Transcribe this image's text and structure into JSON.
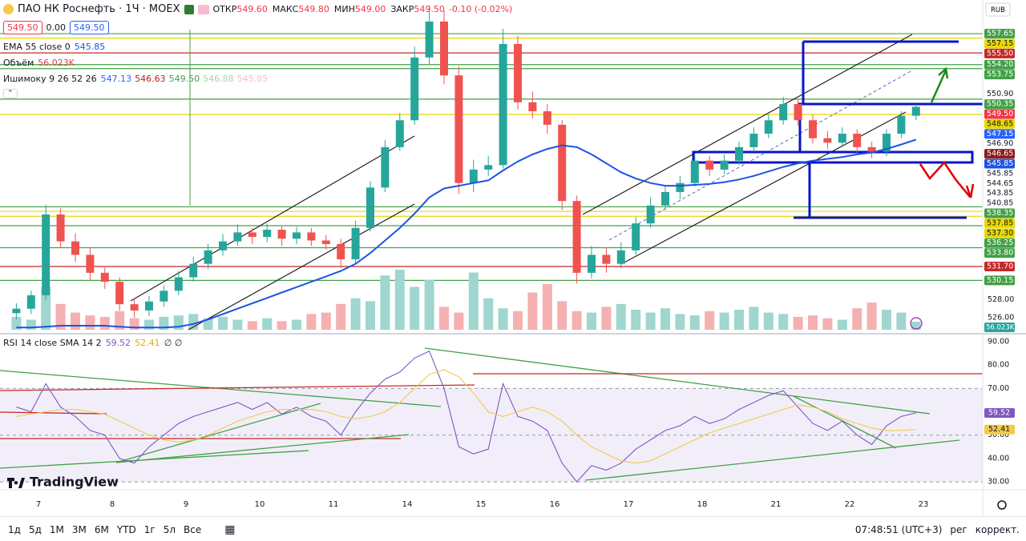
{
  "header": {
    "symbol": "ПАО НК Роснефть · 1Ч · MOEX",
    "ohlc": [
      [
        "ОТКР",
        "549.60"
      ],
      [
        "МАКС",
        "549.80"
      ],
      [
        "МИН",
        "549.00"
      ],
      [
        "ЗАКР",
        "549.50"
      ]
    ],
    "change": "-0.10 (-0.02%)",
    "price_boxes": [
      "549.50",
      "0.00",
      "549.50"
    ],
    "currency": "RUB",
    "ichimoku": {
      "name": "Ишимоку 9 26 52 26",
      "values": [
        "547.13",
        "546.63",
        "549.50",
        "546.88",
        "545.85"
      ],
      "colors": [
        "#2962ff",
        "#b71c1c",
        "#43a047",
        "#a5d6a7",
        "#f8bbd0"
      ]
    }
  },
  "branding": "TradingView",
  "toolbar": {
    "ranges": [
      "1д",
      "5д",
      "1М",
      "3М",
      "6М",
      "YTD",
      "1г",
      "5л",
      "Все"
    ],
    "time": "07:48:51 (UTC+3)",
    "session": "рег",
    "adjust": "коррект."
  },
  "chart_data": [
    {
      "type": "candlestick",
      "up_color": "#26a69a",
      "down_color": "#ef5350",
      "categories": [
        null,
        null,
        "7",
        null,
        null,
        null,
        null,
        "8",
        null,
        null,
        null,
        null,
        "9",
        null,
        null,
        null,
        null,
        "10",
        null,
        null,
        null,
        null,
        "11",
        null,
        null,
        null,
        null,
        "14",
        null,
        null,
        null,
        null,
        "15",
        null,
        null,
        null,
        null,
        "16",
        null,
        null,
        null,
        null,
        "17",
        null,
        null,
        null,
        null,
        "18",
        null,
        null,
        null,
        null,
        "21",
        null,
        null,
        null,
        null,
        "22",
        null,
        null,
        null,
        null,
        "23"
      ],
      "open": [
        526.5,
        527.0,
        528.5,
        537.5,
        534.5,
        533.0,
        531.0,
        530.0,
        527.5,
        526.8,
        527.8,
        529.0,
        530.5,
        532.0,
        533.5,
        534.5,
        535.5,
        535.0,
        535.8,
        534.8,
        535.5,
        534.6,
        534.2,
        532.5,
        536.0,
        540.5,
        545.0,
        548.0,
        555.0,
        559.0,
        553.0,
        541.0,
        542.5,
        543.0,
        556.5,
        550.0,
        549.0,
        547.5,
        539.0,
        531.0,
        533.0,
        532.0,
        533.5,
        536.5,
        538.5,
        540.0,
        541.0,
        543.5,
        542.5,
        543.5,
        545.0,
        546.5,
        548.0,
        549.8,
        548.0,
        546.0,
        545.5,
        546.5,
        545.0,
        544.5,
        546.5,
        548.5,
        null
      ],
      "high": [
        527.6,
        529.0,
        538.6,
        538.2,
        535.4,
        533.8,
        531.6,
        530.5,
        528.2,
        528.4,
        529.6,
        531.2,
        532.8,
        534.2,
        535.3,
        536.4,
        536.0,
        536.5,
        536.2,
        536.1,
        536.0,
        535.2,
        534.8,
        536.8,
        541.2,
        545.8,
        548.8,
        556.2,
        560.8,
        560.2,
        554.0,
        543.6,
        544.0,
        558.2,
        557.4,
        551.2,
        549.8,
        548.0,
        539.6,
        534.0,
        533.8,
        534.4,
        537.2,
        539.4,
        540.8,
        541.8,
        544.2,
        544.0,
        544.2,
        545.6,
        547.2,
        548.6,
        550.6,
        550.4,
        548.6,
        546.8,
        547.2,
        547.0,
        545.6,
        547.0,
        549.0,
        549.8,
        null
      ],
      "low": [
        525.8,
        526.4,
        528.0,
        533.8,
        532.2,
        530.2,
        529.2,
        526.8,
        526.0,
        526.2,
        527.2,
        528.5,
        530.0,
        531.4,
        532.9,
        534.0,
        534.2,
        534.4,
        534.0,
        534.2,
        534.0,
        533.6,
        531.5,
        532.0,
        535.6,
        540.0,
        544.6,
        547.5,
        554.2,
        552.0,
        539.8,
        540.0,
        541.8,
        542.6,
        549.2,
        548.2,
        546.5,
        538.0,
        529.8,
        530.4,
        531.0,
        531.5,
        533.0,
        536.0,
        538.0,
        539.2,
        540.6,
        541.8,
        542.0,
        543.0,
        544.5,
        546.0,
        547.5,
        547.4,
        545.4,
        544.8,
        545.0,
        544.4,
        543.8,
        544.0,
        546.0,
        548.0,
        null
      ],
      "close": [
        527.0,
        528.5,
        537.5,
        534.5,
        533.0,
        531.0,
        530.0,
        527.5,
        526.8,
        527.8,
        529.0,
        530.5,
        532.0,
        533.5,
        534.5,
        535.5,
        535.0,
        535.8,
        534.8,
        535.5,
        534.6,
        534.2,
        532.5,
        536.0,
        540.5,
        545.0,
        548.0,
        555.0,
        559.0,
        553.0,
        541.0,
        542.5,
        543.0,
        556.5,
        550.0,
        549.0,
        547.5,
        539.0,
        531.0,
        533.0,
        532.0,
        533.5,
        536.5,
        538.5,
        540.0,
        541.0,
        543.5,
        542.5,
        543.5,
        545.0,
        546.5,
        548.0,
        549.8,
        548.0,
        546.0,
        545.5,
        546.5,
        545.0,
        544.5,
        546.5,
        548.5,
        549.5,
        null
      ],
      "volume": {
        "name": "Объём",
        "up_color": "#9fd6cf",
        "down_color": "#f5b0b2",
        "last_label": "56.023K",
        "values": [
          90000,
          70000,
          300000,
          180000,
          120000,
          100000,
          90000,
          130000,
          80000,
          70000,
          90000,
          100000,
          110000,
          80000,
          90000,
          70000,
          60000,
          80000,
          60000,
          70000,
          110000,
          120000,
          180000,
          220000,
          200000,
          380000,
          420000,
          300000,
          350000,
          160000,
          120000,
          400000,
          220000,
          150000,
          130000,
          260000,
          320000,
          200000,
          130000,
          120000,
          160000,
          180000,
          140000,
          120000,
          150000,
          110000,
          100000,
          130000,
          120000,
          140000,
          160000,
          120000,
          110000,
          90000,
          100000,
          80000,
          70000,
          150000,
          190000,
          140000,
          120000,
          56023,
          null
        ]
      },
      "lines": [
        {
          "name": "EMA 55 close 0",
          "color": "#1e53e5",
          "values": [
            524.9,
            524.9,
            525.0,
            525.1,
            525.1,
            525.1,
            525.1,
            525.0,
            524.9,
            524.9,
            524.9,
            525.0,
            525.3,
            525.8,
            526.4,
            527.0,
            527.6,
            528.2,
            528.8,
            529.4,
            530.0,
            530.6,
            531.2,
            532.0,
            533.2,
            534.6,
            536.0,
            537.6,
            539.4,
            540.4,
            540.7,
            541.0,
            541.3,
            542.4,
            543.4,
            544.2,
            544.8,
            545.2,
            545.0,
            544.2,
            543.2,
            542.2,
            541.5,
            541.0,
            540.7,
            540.7,
            540.8,
            540.9,
            541.1,
            541.4,
            541.8,
            542.3,
            542.8,
            543.2,
            543.5,
            543.7,
            543.9,
            544.2,
            544.4,
            544.8,
            545.3,
            545.85,
            null
          ]
        }
      ],
      "ylim": [
        524.3,
        561.4
      ],
      "yticks": [
        {
          "value": 526,
          "label": "526.00"
        },
        {
          "value": 528,
          "label": "528.00"
        }
      ],
      "levels": [
        {
          "value": 557.65,
          "label": "557.65",
          "color": "#43a047",
          "line": true
        },
        {
          "value": 557.15,
          "label": "557.15",
          "color": "#e8d800",
          "line": true
        },
        {
          "value": 555.5,
          "label": "555.50",
          "color": "#c62828",
          "line": true
        },
        {
          "value": 554.2,
          "label": "554.20",
          "color": "#43a047",
          "line": true
        },
        {
          "value": 553.75,
          "label": "553.75",
          "color": "#43a047",
          "line": true
        },
        {
          "value": 550.9,
          "label": "550.90",
          "color": "#ffffff",
          "line": false
        },
        {
          "value": 550.35,
          "label": "550.35",
          "color": "#43a047",
          "line": true
        },
        {
          "value": 549.5,
          "label": "549.50",
          "color": "#f23645",
          "line": false
        },
        {
          "value": 548.65,
          "label": "548.65",
          "color": "#e8d800",
          "line": true
        },
        {
          "value": 547.15,
          "label": "547.15",
          "color": "#2962ff",
          "line": false
        },
        {
          "value": 546.9,
          "label": "546.90",
          "color": "#ffffff",
          "line": false
        },
        {
          "value": 546.65,
          "label": "546.65",
          "color": "#8e1b1b",
          "line": false
        },
        {
          "value": 545.85,
          "label": "545.85",
          "color": "#1e53e5",
          "line": false
        },
        {
          "value": 545.85,
          "label": "545.85",
          "color": "#ffffff",
          "line": false
        },
        {
          "value": 544.65,
          "label": "544.65",
          "color": "#ffffff",
          "line": false
        },
        {
          "value": 543.85,
          "label": "543.85",
          "color": "#ffffff",
          "line": false
        },
        {
          "value": 540.85,
          "label": "540.85",
          "color": "#ffffff",
          "line": false
        },
        {
          "value": 538.35,
          "label": "538.35",
          "color": "#43a047",
          "line": true
        },
        {
          "value": 537.85,
          "label": "537.85",
          "color": "#e8d800",
          "line": true
        },
        {
          "value": 537.3,
          "label": "537.30",
          "color": "#e8d800",
          "line": true
        },
        {
          "value": 536.25,
          "label": "536.25",
          "color": "#43a047",
          "line": true
        },
        {
          "value": 533.8,
          "label": "533.80",
          "color": "#43a047",
          "line": true
        },
        {
          "value": 531.7,
          "label": "531.70",
          "color": "#c62828",
          "line": true
        },
        {
          "value": 530.15,
          "label": "530.15",
          "color": "#43a047",
          "line": true
        }
      ]
    },
    {
      "type": "line",
      "title": "RSI 14 close SMA 14 2",
      "extra": "∅ ∅",
      "series": [
        {
          "name": "RSI",
          "color": "#7e57c2",
          "values": [
            62,
            60,
            72,
            62,
            58,
            52,
            50,
            40,
            38,
            45,
            50,
            55,
            58,
            60,
            62,
            64,
            61,
            64,
            59,
            62,
            58,
            56,
            50,
            60,
            68,
            74,
            77,
            83,
            86,
            70,
            45,
            42,
            44,
            72,
            58,
            56,
            52,
            38,
            30,
            37,
            35,
            38,
            44,
            48,
            52,
            54,
            58,
            55,
            57,
            61,
            64,
            67,
            69,
            62,
            55,
            52,
            56,
            50,
            46,
            54,
            58,
            59.52,
            null
          ]
        },
        {
          "name": "SMA",
          "color": "#f2c94c",
          "values": [
            58,
            59,
            60,
            61,
            61,
            60,
            59,
            56,
            53,
            50,
            48,
            47,
            48,
            50,
            53,
            56,
            58,
            60,
            61,
            61,
            61,
            60,
            58,
            57,
            58,
            60,
            64,
            70,
            76,
            78,
            75,
            68,
            60,
            58,
            60,
            62,
            60,
            56,
            50,
            45,
            42,
            39,
            38,
            39,
            42,
            45,
            48,
            51,
            53,
            55,
            57,
            59,
            61,
            63,
            62,
            60,
            57,
            55,
            53,
            52,
            52,
            52.41,
            null
          ]
        }
      ],
      "ylim": [
        26.6,
        92.4
      ],
      "yticks": [
        {
          "value": 30,
          "label": "30.00"
        },
        {
          "value": 40,
          "label": "40.00"
        },
        {
          "value": 50,
          "label": "50.00"
        },
        {
          "value": 60,
          "label": "60.00"
        },
        {
          "value": 70,
          "label": "70.00"
        },
        {
          "value": 80,
          "label": "80.00"
        },
        {
          "value": 90,
          "label": "90.00"
        }
      ],
      "bands": {
        "upper": 70,
        "middle": 50,
        "lower": 30
      }
    }
  ]
}
